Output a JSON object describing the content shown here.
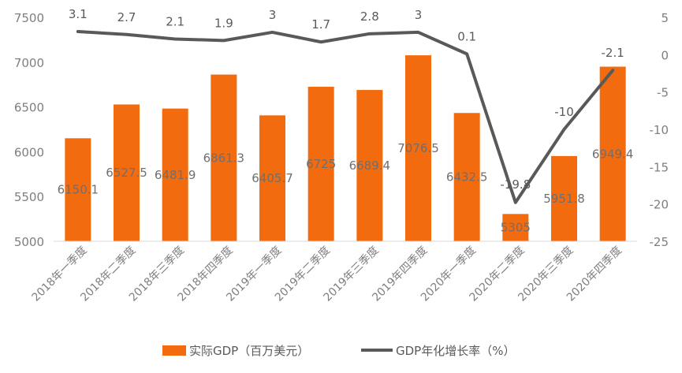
{
  "chart_data": {
    "type": "bar",
    "categories": [
      "2018年一季度",
      "2018年二季度",
      "2018年三季度",
      "2018年四季度",
      "2019年一季度",
      "2019年二季度",
      "2019年三季度",
      "2019年四季度",
      "2020年一季度",
      "2020年二季度",
      "2020年三季度",
      "2020年四季度"
    ],
    "series": [
      {
        "name": "实际GDP（百万美元）",
        "type": "bar",
        "axis": "left",
        "color": "#f26b0f",
        "values": [
          6150.1,
          6527.5,
          6481.9,
          6861.3,
          6405.7,
          6725,
          6689.4,
          7076.5,
          6432.5,
          5305,
          5951.8,
          6949.4
        ],
        "labels": [
          "6150.1",
          "6527.5",
          "6481.9",
          "6861.3",
          "6405.7",
          "6725",
          "6689.4",
          "7076.5",
          "6432.5",
          "5305",
          "5951.8",
          "6949.4"
        ]
      },
      {
        "name": "GDP年化增长率（%）",
        "type": "line",
        "axis": "right",
        "color": "#595959",
        "values": [
          3.1,
          2.7,
          2.1,
          1.9,
          3,
          1.7,
          2.8,
          3,
          0.1,
          -19.8,
          -10,
          -2.1
        ],
        "labels": [
          "3.1",
          "2.7",
          "2.1",
          "1.9",
          "3",
          "1.7",
          "2.8",
          "3",
          "0.1",
          "-19.8",
          "-10",
          "-2.1"
        ]
      }
    ],
    "left_axis": {
      "ylim": [
        5000,
        7500
      ],
      "ticks": [
        "5000",
        "5500",
        "6000",
        "6500",
        "7000",
        "7500"
      ]
    },
    "right_axis": {
      "ylim": [
        -25,
        5
      ],
      "ticks": [
        "5",
        "0",
        "-5",
        "-10",
        "-15",
        "-20",
        "-25"
      ]
    },
    "grid": false,
    "legend_position": "bottom"
  }
}
